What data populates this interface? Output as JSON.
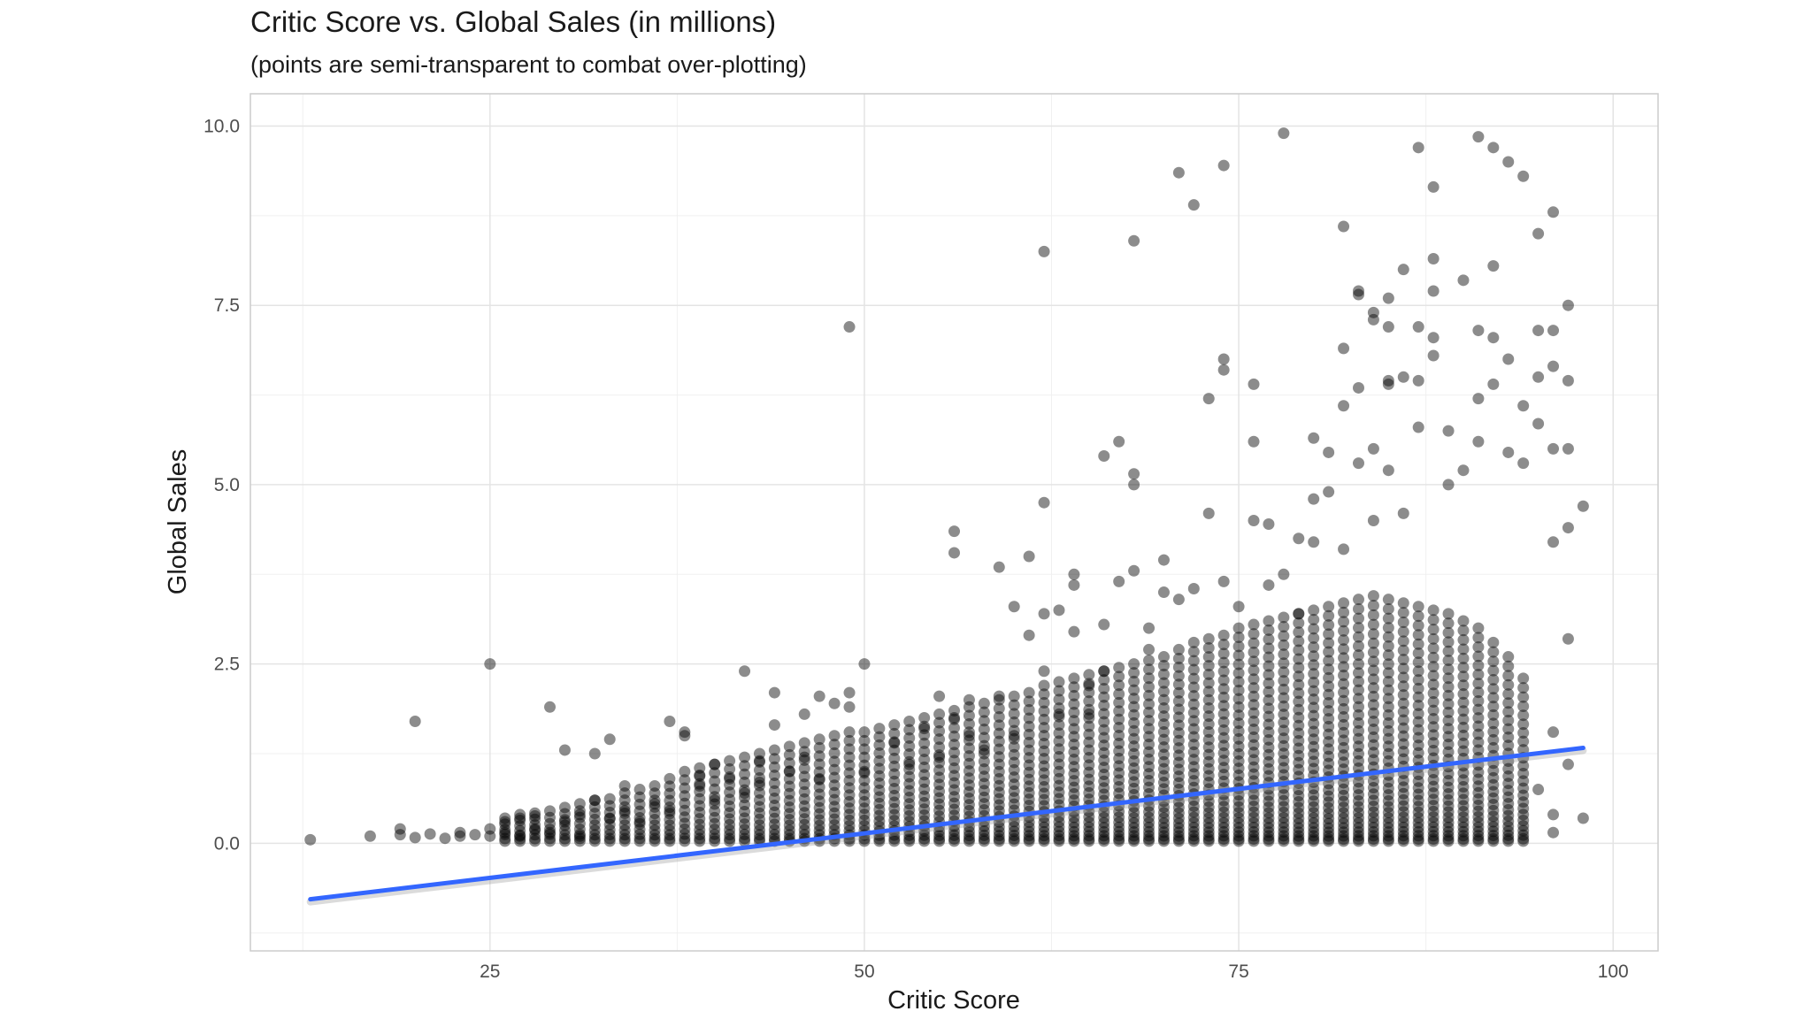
{
  "chart_data": {
    "type": "scatter",
    "title": "Critic Score vs. Global Sales (in millions)",
    "subtitle": "(points are semi-transparent to combat over-plotting)",
    "xlabel": "Critic Score",
    "ylabel": "Global Sales",
    "xlim": [
      9,
      103
    ],
    "ylim": [
      -1.5,
      10.45
    ],
    "x_ticks": [
      25,
      50,
      75,
      100
    ],
    "x_tick_labels": [
      "25",
      "50",
      "75",
      "100"
    ],
    "y_ticks": [
      0,
      2.5,
      5,
      7.5,
      10
    ],
    "y_tick_labels": [
      "0.0",
      "2.5",
      "5.0",
      "7.5",
      "10.0"
    ],
    "grid": true,
    "legend": "none",
    "point_color": "#000000",
    "point_opacity": 0.45,
    "trend_line": {
      "x": [
        13,
        98
      ],
      "y": [
        -0.78,
        1.33
      ],
      "color": "#3366ff"
    },
    "points": [
      [
        13,
        0.05
      ],
      [
        17,
        0.1
      ],
      [
        19,
        0.12
      ],
      [
        19,
        0.2
      ],
      [
        20,
        1.7
      ],
      [
        20,
        0.08
      ],
      [
        21,
        0.13
      ],
      [
        22,
        0.07
      ],
      [
        23,
        0.1
      ],
      [
        23,
        0.15
      ],
      [
        24,
        0.12
      ],
      [
        25,
        2.5
      ],
      [
        25,
        0.2
      ],
      [
        25,
        0.1
      ],
      [
        26,
        0.3
      ],
      [
        26,
        0.15
      ],
      [
        27,
        0.35
      ],
      [
        27,
        0.1
      ],
      [
        28,
        0.38
      ],
      [
        28,
        0.2
      ],
      [
        29,
        1.9
      ],
      [
        29,
        0.15
      ],
      [
        30,
        1.3
      ],
      [
        30,
        0.3
      ],
      [
        31,
        0.4
      ],
      [
        31,
        0.1
      ],
      [
        32,
        1.25
      ],
      [
        32,
        0.6
      ],
      [
        33,
        1.45
      ],
      [
        33,
        0.35
      ],
      [
        34,
        0.8
      ],
      [
        34,
        0.45
      ],
      [
        35,
        0.3
      ],
      [
        36,
        0.55
      ],
      [
        37,
        1.7
      ],
      [
        37,
        0.45
      ],
      [
        38,
        1.55
      ],
      [
        38,
        1.5
      ],
      [
        39,
        0.95
      ],
      [
        39,
        0.8
      ],
      [
        40,
        1.1
      ],
      [
        40,
        0.6
      ],
      [
        41,
        0.9
      ],
      [
        42,
        2.4
      ],
      [
        42,
        0.7
      ],
      [
        43,
        1.15
      ],
      [
        43,
        0.85
      ],
      [
        44,
        2.1
      ],
      [
        44,
        1.65
      ],
      [
        45,
        1.0
      ],
      [
        46,
        1.2
      ],
      [
        46,
        1.8
      ],
      [
        47,
        0.9
      ],
      [
        47,
        2.05
      ],
      [
        48,
        1.95
      ],
      [
        49,
        7.2
      ],
      [
        49,
        2.1
      ],
      [
        49,
        1.9
      ],
      [
        50,
        2.5
      ],
      [
        50,
        1.0
      ],
      [
        52,
        1.4
      ],
      [
        53,
        1.1
      ],
      [
        54,
        1.6
      ],
      [
        55,
        1.2
      ],
      [
        55,
        2.05
      ],
      [
        56,
        4.35
      ],
      [
        56,
        4.05
      ],
      [
        56,
        1.75
      ],
      [
        57,
        2.0
      ],
      [
        57,
        1.5
      ],
      [
        58,
        1.3
      ],
      [
        59,
        3.85
      ],
      [
        59,
        2.05
      ],
      [
        60,
        3.3
      ],
      [
        60,
        1.5
      ],
      [
        61,
        2.9
      ],
      [
        61,
        4.0
      ],
      [
        62,
        8.25
      ],
      [
        62,
        4.75
      ],
      [
        62,
        3.2
      ],
      [
        62,
        2.4
      ],
      [
        63,
        3.25
      ],
      [
        63,
        1.8
      ],
      [
        64,
        3.75
      ],
      [
        64,
        3.6
      ],
      [
        64,
        2.95
      ],
      [
        65,
        2.2
      ],
      [
        65,
        1.8
      ],
      [
        66,
        5.4
      ],
      [
        66,
        2.4
      ],
      [
        66,
        3.05
      ],
      [
        67,
        5.6
      ],
      [
        67,
        3.65
      ],
      [
        68,
        8.4
      ],
      [
        68,
        5.15
      ],
      [
        68,
        5.0
      ],
      [
        68,
        3.8
      ],
      [
        69,
        3.0
      ],
      [
        69,
        2.7
      ],
      [
        70,
        3.95
      ],
      [
        70,
        3.5
      ],
      [
        71,
        9.35
      ],
      [
        71,
        3.4
      ],
      [
        72,
        8.9
      ],
      [
        72,
        3.55
      ],
      [
        73,
        6.2
      ],
      [
        73,
        4.6
      ],
      [
        74,
        9.45
      ],
      [
        74,
        6.75
      ],
      [
        74,
        6.6
      ],
      [
        74,
        3.65
      ],
      [
        75,
        3.3
      ],
      [
        76,
        6.4
      ],
      [
        76,
        5.6
      ],
      [
        76,
        4.5
      ],
      [
        77,
        4.45
      ],
      [
        77,
        3.6
      ],
      [
        78,
        9.9
      ],
      [
        78,
        3.75
      ],
      [
        79,
        4.25
      ],
      [
        79,
        3.2
      ],
      [
        80,
        5.65
      ],
      [
        80,
        4.2
      ],
      [
        80,
        4.8
      ],
      [
        81,
        5.45
      ],
      [
        81,
        4.9
      ],
      [
        82,
        8.6
      ],
      [
        82,
        6.9
      ],
      [
        82,
        6.1
      ],
      [
        82,
        4.1
      ],
      [
        83,
        7.7
      ],
      [
        83,
        7.65
      ],
      [
        83,
        6.35
      ],
      [
        83,
        5.3
      ],
      [
        84,
        7.4
      ],
      [
        84,
        7.3
      ],
      [
        84,
        5.5
      ],
      [
        84,
        4.5
      ],
      [
        85,
        7.6
      ],
      [
        85,
        7.2
      ],
      [
        85,
        6.45
      ],
      [
        85,
        6.4
      ],
      [
        85,
        5.2
      ],
      [
        86,
        8.0
      ],
      [
        86,
        6.5
      ],
      [
        86,
        4.6
      ],
      [
        87,
        9.7
      ],
      [
        87,
        7.2
      ],
      [
        87,
        6.45
      ],
      [
        87,
        5.8
      ],
      [
        88,
        9.15
      ],
      [
        88,
        8.15
      ],
      [
        88,
        7.7
      ],
      [
        88,
        7.05
      ],
      [
        88,
        6.8
      ],
      [
        89,
        5.75
      ],
      [
        89,
        5.0
      ],
      [
        90,
        7.85
      ],
      [
        90,
        5.2
      ],
      [
        91,
        9.85
      ],
      [
        91,
        7.15
      ],
      [
        91,
        6.2
      ],
      [
        91,
        5.6
      ],
      [
        92,
        9.7
      ],
      [
        92,
        8.05
      ],
      [
        92,
        7.05
      ],
      [
        92,
        6.4
      ],
      [
        93,
        9.5
      ],
      [
        93,
        6.75
      ],
      [
        93,
        5.45
      ],
      [
        94,
        9.3
      ],
      [
        94,
        6.1
      ],
      [
        94,
        5.3
      ],
      [
        95,
        8.5
      ],
      [
        95,
        7.15
      ],
      [
        95,
        6.5
      ],
      [
        95,
        5.85
      ],
      [
        96,
        8.8
      ],
      [
        96,
        7.15
      ],
      [
        96,
        6.65
      ],
      [
        96,
        5.5
      ],
      [
        96,
        4.2
      ],
      [
        97,
        7.5
      ],
      [
        97,
        6.45
      ],
      [
        97,
        5.5
      ],
      [
        97,
        4.4
      ],
      [
        97,
        2.85
      ],
      [
        98,
        4.7
      ],
      [
        98,
        0.35
      ],
      [
        96,
        0.15
      ],
      [
        95,
        0.75
      ],
      [
        97,
        1.1
      ],
      [
        96,
        1.55
      ],
      [
        96,
        0.4
      ]
    ],
    "column_bands": [
      [
        26,
        0.35,
        6
      ],
      [
        27,
        0.4,
        7
      ],
      [
        28,
        0.42,
        7
      ],
      [
        29,
        0.45,
        7
      ],
      [
        30,
        0.5,
        8
      ],
      [
        31,
        0.55,
        8
      ],
      [
        32,
        0.6,
        9
      ],
      [
        33,
        0.62,
        9
      ],
      [
        34,
        0.7,
        10
      ],
      [
        35,
        0.75,
        10
      ],
      [
        36,
        0.8,
        11
      ],
      [
        37,
        0.9,
        12
      ],
      [
        38,
        1.0,
        12
      ],
      [
        39,
        1.05,
        13
      ],
      [
        40,
        1.1,
        13
      ],
      [
        41,
        1.15,
        14
      ],
      [
        42,
        1.2,
        14
      ],
      [
        43,
        1.25,
        15
      ],
      [
        44,
        1.3,
        15
      ],
      [
        45,
        1.35,
        16
      ],
      [
        46,
        1.4,
        16
      ],
      [
        47,
        1.45,
        17
      ],
      [
        48,
        1.5,
        17
      ],
      [
        49,
        1.55,
        18
      ],
      [
        50,
        1.55,
        18
      ],
      [
        51,
        1.6,
        19
      ],
      [
        52,
        1.65,
        19
      ],
      [
        53,
        1.7,
        20
      ],
      [
        54,
        1.75,
        20
      ],
      [
        55,
        1.8,
        21
      ],
      [
        56,
        1.85,
        21
      ],
      [
        57,
        1.9,
        22
      ],
      [
        58,
        1.95,
        22
      ],
      [
        59,
        2.0,
        23
      ],
      [
        60,
        2.05,
        23
      ],
      [
        61,
        2.1,
        24
      ],
      [
        62,
        2.2,
        25
      ],
      [
        63,
        2.25,
        25
      ],
      [
        64,
        2.3,
        26
      ],
      [
        65,
        2.35,
        26
      ],
      [
        66,
        2.4,
        27
      ],
      [
        67,
        2.45,
        27
      ],
      [
        68,
        2.5,
        28
      ],
      [
        69,
        2.55,
        28
      ],
      [
        70,
        2.6,
        29
      ],
      [
        71,
        2.7,
        30
      ],
      [
        72,
        2.8,
        30
      ],
      [
        73,
        2.85,
        31
      ],
      [
        74,
        2.9,
        31
      ],
      [
        75,
        3.0,
        32
      ],
      [
        76,
        3.05,
        32
      ],
      [
        77,
        3.1,
        33
      ],
      [
        78,
        3.15,
        33
      ],
      [
        79,
        3.2,
        34
      ],
      [
        80,
        3.25,
        34
      ],
      [
        81,
        3.3,
        35
      ],
      [
        82,
        3.35,
        35
      ],
      [
        83,
        3.4,
        35
      ],
      [
        84,
        3.45,
        35
      ],
      [
        85,
        3.4,
        35
      ],
      [
        86,
        3.35,
        34
      ],
      [
        87,
        3.3,
        34
      ],
      [
        88,
        3.25,
        33
      ],
      [
        89,
        3.2,
        33
      ],
      [
        90,
        3.1,
        32
      ],
      [
        91,
        3.0,
        31
      ],
      [
        92,
        2.8,
        29
      ],
      [
        93,
        2.6,
        27
      ],
      [
        94,
        2.3,
        24
      ]
    ]
  }
}
